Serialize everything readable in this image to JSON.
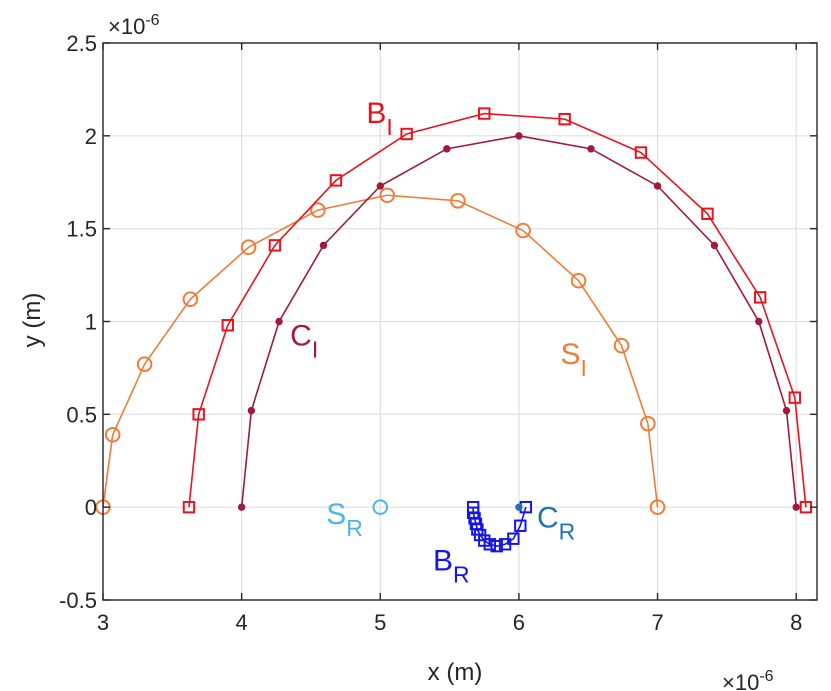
{
  "chart_data": {
    "type": "line",
    "title": "",
    "xlabel": "x (m)",
    "ylabel": "y (m)",
    "xlim": [
      3,
      8.15
    ],
    "ylim": [
      -0.5,
      2.5
    ],
    "x_scale_multiplier": "×10^-6",
    "y_scale_multiplier": "×10^-6",
    "x_multiplier": {
      "base": "×10",
      "exp": "-6"
    },
    "y_multiplier": {
      "base": "×10",
      "exp": "-6"
    },
    "xticks": [
      3,
      4,
      5,
      6,
      7,
      8
    ],
    "yticks": [
      -0.5,
      0,
      0.5,
      1,
      1.5,
      2,
      2.5
    ],
    "xtick_labels": [
      "3",
      "4",
      "5",
      "6",
      "7",
      "8"
    ],
    "ytick_labels": [
      "-0.5",
      "0",
      "0.5",
      "1",
      "1.5",
      "2",
      "2.5"
    ],
    "grid": true,
    "series": [
      {
        "name": "S_I",
        "color": "#f07c3a",
        "marker": "circle",
        "line": true,
        "x": [
          3.0,
          3.07,
          3.3,
          3.63,
          4.05,
          4.55,
          5.05,
          5.56,
          6.03,
          6.43,
          6.74,
          6.93,
          7.0
        ],
        "y": [
          0.0,
          0.39,
          0.77,
          1.12,
          1.4,
          1.6,
          1.68,
          1.65,
          1.49,
          1.22,
          0.87,
          0.45,
          0.0
        ]
      },
      {
        "name": "B_I",
        "color": "#e8131f",
        "marker": "square",
        "line": true,
        "x": [
          3.62,
          3.69,
          3.9,
          4.24,
          4.68,
          5.19,
          5.75,
          6.33,
          6.88,
          7.36,
          7.74,
          7.99,
          8.07
        ],
        "y": [
          0.0,
          0.5,
          0.98,
          1.41,
          1.76,
          2.01,
          2.12,
          2.09,
          1.91,
          1.58,
          1.13,
          0.59,
          0.0
        ]
      },
      {
        "name": "C_I",
        "color": "#9e1b3e",
        "marker": "dot",
        "line": true,
        "x": [
          4.0,
          4.07,
          4.27,
          4.59,
          5.0,
          5.48,
          6.0,
          6.52,
          7.0,
          7.41,
          7.73,
          7.93,
          8.0
        ],
        "y": [
          0.0,
          0.52,
          1.0,
          1.41,
          1.73,
          1.93,
          2.0,
          1.93,
          1.73,
          1.41,
          1.0,
          0.52,
          0.0
        ]
      },
      {
        "name": "S_R",
        "color": "#4ab7e6",
        "marker": "circle",
        "line": false,
        "x": [
          5.0
        ],
        "y": [
          0.0
        ]
      },
      {
        "name": "B_R",
        "color": "#1515e8",
        "marker": "square",
        "line": true,
        "x": [
          5.67,
          5.67,
          5.68,
          5.69,
          5.7,
          5.72,
          5.75,
          5.79,
          5.84,
          5.9,
          5.96,
          6.01,
          6.05
        ],
        "y": [
          0.0,
          -0.03,
          -0.06,
          -0.09,
          -0.12,
          -0.15,
          -0.18,
          -0.2,
          -0.21,
          -0.2,
          -0.17,
          -0.1,
          0.0
        ]
      },
      {
        "name": "C_R",
        "color": "#2171b5",
        "marker": "dot",
        "line": false,
        "x": [
          6.0
        ],
        "y": [
          0.0
        ]
      }
    ],
    "annotations": [
      {
        "main": "B",
        "sub": "I",
        "x": 4.9,
        "y": 2.07,
        "color": "#e8131f"
      },
      {
        "main": "C",
        "sub": "I",
        "x": 4.35,
        "y": 0.87,
        "color": "#9e1b3e"
      },
      {
        "main": "S",
        "sub": "I",
        "x": 6.3,
        "y": 0.77,
        "color": "#f07c3a"
      },
      {
        "main": "S",
        "sub": "R",
        "x": 4.61,
        "y": -0.09,
        "color": "#4ab7e6"
      },
      {
        "main": "B",
        "sub": "R",
        "x": 5.38,
        "y": -0.34,
        "color": "#1515e8"
      },
      {
        "main": "C",
        "sub": "R",
        "x": 6.13,
        "y": -0.11,
        "color": "#2171b5"
      }
    ]
  }
}
